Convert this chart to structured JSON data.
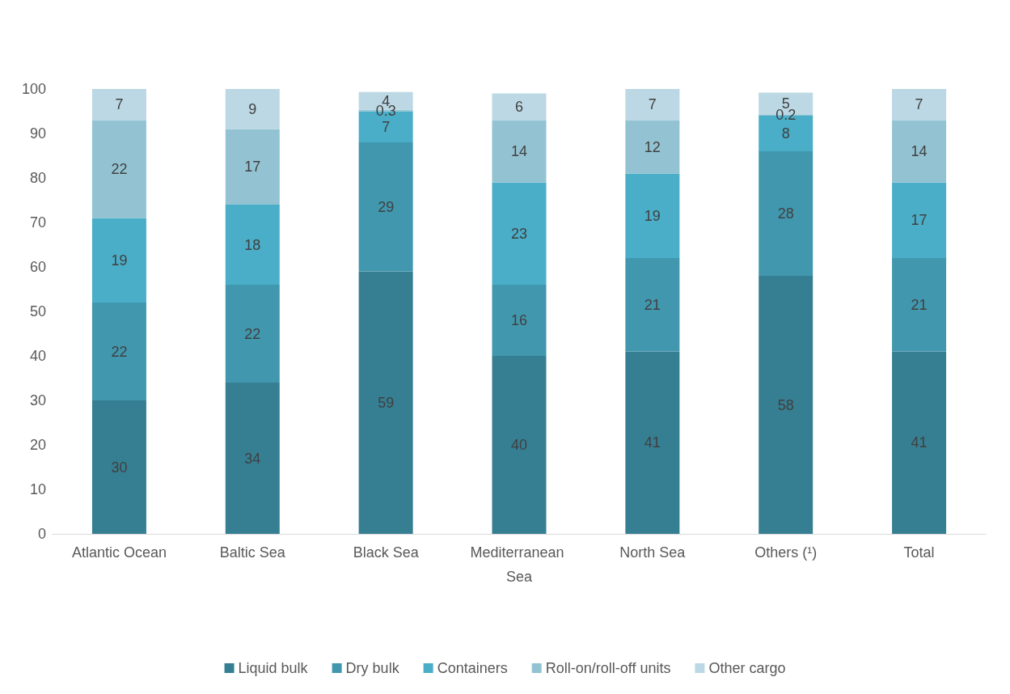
{
  "chart_data": {
    "type": "bar",
    "stacked": true,
    "categories": [
      "Atlantic Ocean",
      "Baltic Sea",
      "Black Sea",
      "Mediterranean Sea",
      "North Sea",
      "Others (¹)",
      "Total"
    ],
    "series": [
      {
        "name": "Liquid bulk",
        "color": "#367f93",
        "values": [
          30,
          34,
          59,
          40,
          41,
          58,
          41
        ]
      },
      {
        "name": "Dry bulk",
        "color": "#4197ae",
        "values": [
          22,
          22,
          29,
          16,
          21,
          28,
          21
        ]
      },
      {
        "name": "Containers",
        "color": "#4aaec8",
        "values": [
          19,
          18,
          7,
          23,
          19,
          8,
          17
        ]
      },
      {
        "name": "Roll-on/roll-off units",
        "color": "#93c3d3",
        "values": [
          22,
          17,
          0.3,
          14,
          12,
          0.2,
          14
        ]
      },
      {
        "name": "Other cargo",
        "color": "#bcd8e4",
        "values": [
          7,
          9,
          4,
          6,
          7,
          5,
          7
        ]
      }
    ],
    "ylim": [
      0,
      100
    ],
    "yticks": [
      0,
      10,
      20,
      30,
      40,
      50,
      60,
      70,
      80,
      90,
      100
    ],
    "grid": false,
    "legend": "bottom",
    "data_labels": true
  }
}
